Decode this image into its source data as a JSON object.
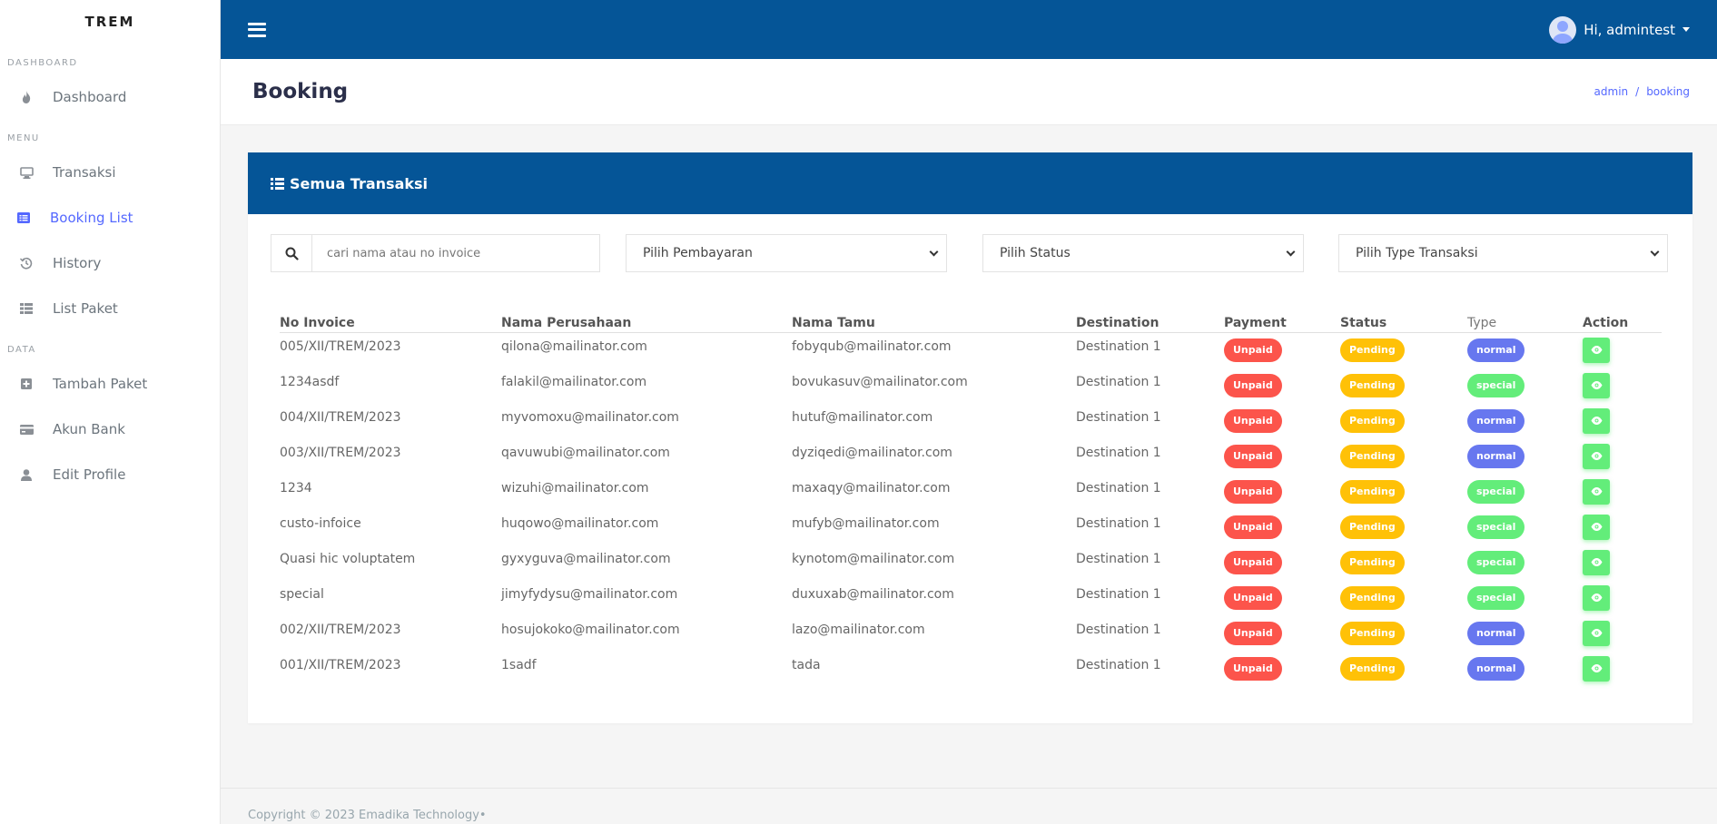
{
  "sidebar": {
    "brand": "TREM",
    "sections": {
      "dashboard": "DASHBOARD",
      "menu": "MENU",
      "data": "DATA"
    },
    "items": [
      {
        "label": "Dashboard",
        "icon": "fire-icon"
      },
      {
        "label": "Transaksi",
        "icon": "monitor-icon"
      },
      {
        "label": "Booking List",
        "icon": "list-icon",
        "active": true
      },
      {
        "label": "History",
        "icon": "history-icon"
      },
      {
        "label": "List Paket",
        "icon": "table-icon"
      },
      {
        "label": "Tambah Paket",
        "icon": "plus-square-icon"
      },
      {
        "label": "Akun Bank",
        "icon": "credit-card-icon"
      },
      {
        "label": "Edit Profile",
        "icon": "user-icon"
      }
    ]
  },
  "topbar": {
    "user_label": "Hi, admintest"
  },
  "header": {
    "title": "Booking",
    "breadcrumb": [
      "admin",
      "booking"
    ]
  },
  "card": {
    "title": "Semua Transaksi",
    "search_placeholder": "cari nama atau no invoice",
    "filters": {
      "payment": "Pilih Pembayaran",
      "status": "Pilih Status",
      "type": "Pilih Type Transaksi"
    }
  },
  "table": {
    "headers": [
      "No Invoice",
      "Nama Perusahaan",
      "Nama Tamu",
      "Destination",
      "Payment",
      "Status",
      "Type",
      "Action"
    ],
    "rows": [
      {
        "invoice": "005/XII/TREM/2023",
        "company": "qilona@mailinator.com",
        "guest": "fobyqub@mailinator.com",
        "destination": "Destination 1",
        "payment": "Unpaid",
        "status": "Pending",
        "type": "normal"
      },
      {
        "invoice": "1234asdf",
        "company": "falakil@mailinator.com",
        "guest": "bovukasuv@mailinator.com",
        "destination": "Destination 1",
        "payment": "Unpaid",
        "status": "Pending",
        "type": "special"
      },
      {
        "invoice": "004/XII/TREM/2023",
        "company": "myvomoxu@mailinator.com",
        "guest": "hutuf@mailinator.com",
        "destination": "Destination 1",
        "payment": "Unpaid",
        "status": "Pending",
        "type": "normal"
      },
      {
        "invoice": "003/XII/TREM/2023",
        "company": "qavuwubi@mailinator.com",
        "guest": "dyziqedi@mailinator.com",
        "destination": "Destination 1",
        "payment": "Unpaid",
        "status": "Pending",
        "type": "normal"
      },
      {
        "invoice": "1234",
        "company": "wizuhi@mailinator.com",
        "guest": "maxaqy@mailinator.com",
        "destination": "Destination 1",
        "payment": "Unpaid",
        "status": "Pending",
        "type": "special"
      },
      {
        "invoice": "custo-infoice",
        "company": "huqowo@mailinator.com",
        "guest": "mufyb@mailinator.com",
        "destination": "Destination 1",
        "payment": "Unpaid",
        "status": "Pending",
        "type": "special"
      },
      {
        "invoice": "Quasi hic voluptatem",
        "company": "gyxyguva@mailinator.com",
        "guest": "kynotom@mailinator.com",
        "destination": "Destination 1",
        "payment": "Unpaid",
        "status": "Pending",
        "type": "special"
      },
      {
        "invoice": "special",
        "company": "jimyfydysu@mailinator.com",
        "guest": "duxuxab@mailinator.com",
        "destination": "Destination 1",
        "payment": "Unpaid",
        "status": "Pending",
        "type": "special"
      },
      {
        "invoice": "002/XII/TREM/2023",
        "company": "hosujokoko@mailinator.com",
        "guest": "lazo@mailinator.com",
        "destination": "Destination 1",
        "payment": "Unpaid",
        "status": "Pending",
        "type": "normal"
      },
      {
        "invoice": "001/XII/TREM/2023",
        "company": "1sadf",
        "guest": "tada",
        "destination": "Destination 1",
        "payment": "Unpaid",
        "status": "Pending",
        "type": "normal"
      }
    ]
  },
  "footer": {
    "text": "Copyright © 2023  Emadika Technology•"
  },
  "colors": {
    "primary": "#055597",
    "accent": "#5468ff",
    "unpaid": "#fc544b",
    "pending": "#ffc107",
    "normal": "#6777ef",
    "special": "#63ed7a"
  }
}
